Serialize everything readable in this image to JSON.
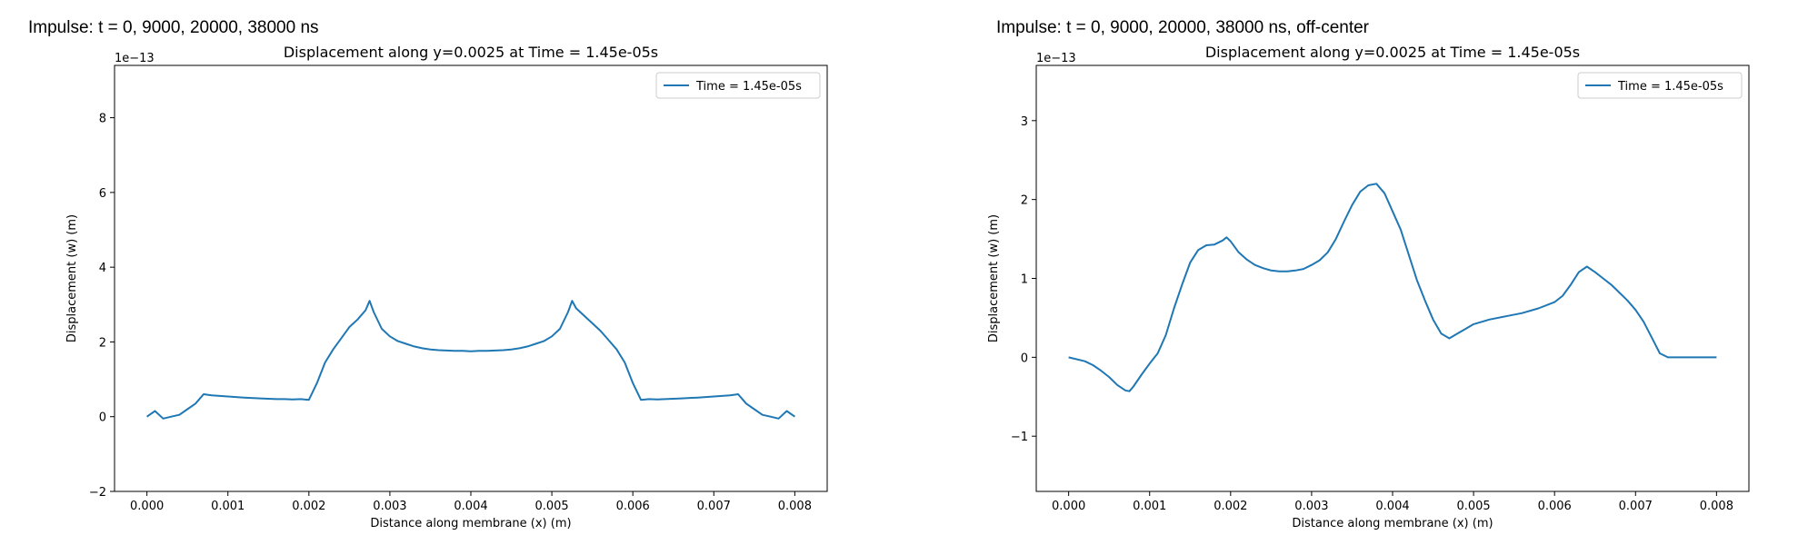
{
  "panels": [
    {
      "heading": "Impulse: t = 0, 9000, 20000, 38000 ns"
    },
    {
      "heading": "Impulse: t = 0, 9000, 20000, 38000 ns, off-center"
    }
  ],
  "chart_data": [
    {
      "type": "line",
      "title": "Displacement along y=0.0025 at Time = 1.45e-05s",
      "xlabel": "Distance along membrane (x) (m)",
      "ylabel": "Displacement (w) (m)",
      "y_scale_label": "1e−13",
      "xlim": [
        -0.0004,
        0.0084
      ],
      "ylim": [
        -2,
        9.4
      ],
      "x_ticks": [
        0.0,
        0.001,
        0.002,
        0.003,
        0.004,
        0.005,
        0.006,
        0.007,
        0.008
      ],
      "x_tick_labels": [
        "0.000",
        "0.001",
        "0.002",
        "0.003",
        "0.004",
        "0.005",
        "0.006",
        "0.007",
        "0.008"
      ],
      "y_ticks": [
        -2,
        0,
        2,
        4,
        6,
        8
      ],
      "y_tick_labels": [
        "−2",
        "0",
        "2",
        "4",
        "6",
        "8"
      ],
      "grid": false,
      "legend_position": "top-right",
      "colors": {
        "line": "#1f77b4"
      },
      "series": [
        {
          "name": "Time = 1.45e-05s",
          "x": [
            0,
            0.0001,
            0.0002,
            0.0003,
            0.0004,
            0.0005,
            0.0006,
            0.0007,
            0.0008,
            0.001,
            0.0012,
            0.0014,
            0.0016,
            0.0017,
            0.0018,
            0.0019,
            0.002,
            0.0021,
            0.0022,
            0.0023,
            0.0024,
            0.0025,
            0.0026,
            0.0027,
            0.00275,
            0.0028,
            0.0029,
            0.003,
            0.0031,
            0.0032,
            0.0033,
            0.0034,
            0.0035,
            0.0036,
            0.0037,
            0.0038,
            0.0039,
            0.004,
            0.0041,
            0.0042,
            0.0043,
            0.0044,
            0.0045,
            0.0046,
            0.0047,
            0.0048,
            0.0049,
            0.005,
            0.0051,
            0.0052,
            0.00525,
            0.0053,
            0.0054,
            0.0055,
            0.0056,
            0.0057,
            0.0058,
            0.0059,
            0.006,
            0.0061,
            0.0062,
            0.0063,
            0.0064,
            0.0066,
            0.0068,
            0.007,
            0.0072,
            0.0073,
            0.0074,
            0.0075,
            0.0076,
            0.0077,
            0.0078,
            0.0079,
            0.008
          ],
          "y": [
            0.0,
            0.15,
            -0.05,
            0.0,
            0.05,
            0.2,
            0.35,
            0.6,
            0.57,
            0.54,
            0.51,
            0.49,
            0.47,
            0.47,
            0.46,
            0.47,
            0.45,
            0.9,
            1.45,
            1.8,
            2.1,
            2.4,
            2.6,
            2.85,
            3.1,
            2.8,
            2.35,
            2.15,
            2.02,
            1.95,
            1.88,
            1.83,
            1.8,
            1.78,
            1.77,
            1.76,
            1.76,
            1.75,
            1.76,
            1.76,
            1.77,
            1.78,
            1.8,
            1.83,
            1.88,
            1.95,
            2.02,
            2.15,
            2.35,
            2.8,
            3.1,
            2.9,
            2.7,
            2.5,
            2.3,
            2.05,
            1.8,
            1.45,
            0.9,
            0.45,
            0.47,
            0.46,
            0.47,
            0.49,
            0.51,
            0.54,
            0.57,
            0.6,
            0.35,
            0.2,
            0.05,
            0.0,
            -0.05,
            0.15,
            0.0
          ]
        }
      ]
    },
    {
      "type": "line",
      "title": "Displacement along y=0.0025 at Time = 1.45e-05s",
      "xlabel": "Distance along membrane (x) (m)",
      "ylabel": "Displacement (w) (m)",
      "y_scale_label": "1e−13",
      "xlim": [
        -0.0004,
        0.0084
      ],
      "ylim": [
        -1.7,
        3.7
      ],
      "x_ticks": [
        0.0,
        0.001,
        0.002,
        0.003,
        0.004,
        0.005,
        0.006,
        0.007,
        0.008
      ],
      "x_tick_labels": [
        "0.000",
        "0.001",
        "0.002",
        "0.003",
        "0.004",
        "0.005",
        "0.006",
        "0.007",
        "0.008"
      ],
      "y_ticks": [
        -1,
        0,
        1,
        2,
        3
      ],
      "y_tick_labels": [
        "−1",
        "0",
        "1",
        "2",
        "3"
      ],
      "grid": false,
      "legend_position": "top-right",
      "colors": {
        "line": "#1f77b4"
      },
      "series": [
        {
          "name": "Time = 1.45e-05s",
          "x": [
            0,
            0.0002,
            0.0003,
            0.0004,
            0.0005,
            0.0006,
            0.0007,
            0.00075,
            0.0008,
            0.0009,
            0.001,
            0.0011,
            0.0012,
            0.0013,
            0.0014,
            0.0015,
            0.0016,
            0.0017,
            0.0018,
            0.0019,
            0.00195,
            0.002,
            0.0021,
            0.0022,
            0.0023,
            0.0024,
            0.0025,
            0.0026,
            0.0027,
            0.0028,
            0.0029,
            0.003,
            0.0031,
            0.0032,
            0.0033,
            0.0034,
            0.0035,
            0.0036,
            0.0037,
            0.0038,
            0.0039,
            0.004,
            0.0041,
            0.0042,
            0.0043,
            0.0044,
            0.0045,
            0.0046,
            0.0047,
            0.0048,
            0.0049,
            0.005,
            0.0052,
            0.0054,
            0.0056,
            0.0058,
            0.006,
            0.0061,
            0.0062,
            0.0063,
            0.0064,
            0.0065,
            0.0066,
            0.0067,
            0.0068,
            0.0069,
            0.007,
            0.0071,
            0.0072,
            0.0073,
            0.0074,
            0.0075,
            0.0078,
            0.008
          ],
          "y": [
            0.0,
            -0.05,
            -0.1,
            -0.17,
            -0.25,
            -0.35,
            -0.42,
            -0.43,
            -0.37,
            -0.22,
            -0.08,
            0.05,
            0.28,
            0.62,
            0.92,
            1.2,
            1.36,
            1.42,
            1.43,
            1.48,
            1.52,
            1.47,
            1.33,
            1.24,
            1.17,
            1.13,
            1.1,
            1.09,
            1.09,
            1.1,
            1.12,
            1.17,
            1.23,
            1.33,
            1.5,
            1.72,
            1.93,
            2.1,
            2.18,
            2.2,
            2.08,
            1.85,
            1.62,
            1.3,
            0.98,
            0.72,
            0.48,
            0.3,
            0.24,
            0.3,
            0.36,
            0.42,
            0.48,
            0.52,
            0.56,
            0.62,
            0.7,
            0.78,
            0.92,
            1.08,
            1.15,
            1.08,
            1.0,
            0.92,
            0.82,
            0.72,
            0.6,
            0.45,
            0.25,
            0.05,
            0.0,
            0.0,
            0.0,
            0.0
          ]
        }
      ]
    }
  ]
}
